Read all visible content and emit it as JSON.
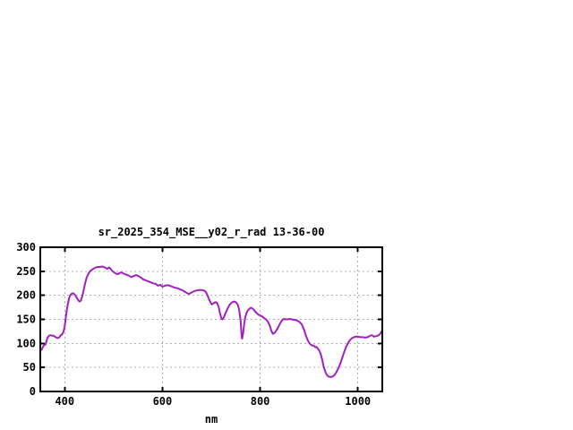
{
  "window": {
    "background": "#ffffff"
  },
  "chart_data": {
    "type": "line",
    "title": "sr_2025_354_MSE__y02_r_rad 13-36-00",
    "xlabel": "nm",
    "ylabel": "",
    "xlim": [
      350,
      1050
    ],
    "ylim": [
      0,
      300
    ],
    "xticks": [
      400,
      600,
      800,
      1000
    ],
    "yticks": [
      0,
      50,
      100,
      150,
      200,
      250,
      300
    ],
    "grid": true,
    "grid_style": "dashed",
    "legend_position": "none",
    "line_color": "#a020c0",
    "grid_color": "#b0b0b0",
    "axis_color": "#000000",
    "series": [
      {
        "name": "sr_2025_354_MSE__y02_r_rad",
        "points": [
          [
            350,
            86
          ],
          [
            353,
            87
          ],
          [
            356,
            94
          ],
          [
            359,
            97
          ],
          [
            361,
            98
          ],
          [
            363,
            106
          ],
          [
            365,
            112
          ],
          [
            368,
            116
          ],
          [
            371,
            117
          ],
          [
            374,
            116
          ],
          [
            377,
            116
          ],
          [
            380,
            114
          ],
          [
            383,
            112
          ],
          [
            386,
            111
          ],
          [
            389,
            113
          ],
          [
            392,
            117
          ],
          [
            394,
            118
          ],
          [
            396,
            121
          ],
          [
            398,
            126
          ],
          [
            400,
            136
          ],
          [
            402,
            152
          ],
          [
            404,
            168
          ],
          [
            406,
            180
          ],
          [
            408,
            190
          ],
          [
            410,
            197
          ],
          [
            412,
            201
          ],
          [
            415,
            204
          ],
          [
            418,
            204
          ],
          [
            421,
            201
          ],
          [
            424,
            196
          ],
          [
            427,
            191
          ],
          [
            430,
            187
          ],
          [
            433,
            189
          ],
          [
            436,
            198
          ],
          [
            439,
            212
          ],
          [
            442,
            226
          ],
          [
            445,
            237
          ],
          [
            448,
            244
          ],
          [
            451,
            249
          ],
          [
            454,
            252
          ],
          [
            457,
            254
          ],
          [
            460,
            256
          ],
          [
            464,
            258
          ],
          [
            468,
            259
          ],
          [
            472,
            259
          ],
          [
            476,
            260
          ],
          [
            480,
            259
          ],
          [
            484,
            257
          ],
          [
            487,
            255
          ],
          [
            491,
            258
          ],
          [
            494,
            255
          ],
          [
            497,
            251
          ],
          [
            501,
            248
          ],
          [
            505,
            245
          ],
          [
            509,
            244
          ],
          [
            513,
            247
          ],
          [
            517,
            247
          ],
          [
            521,
            245
          ],
          [
            526,
            243
          ],
          [
            531,
            241
          ],
          [
            536,
            238
          ],
          [
            541,
            240
          ],
          [
            546,
            242
          ],
          [
            551,
            240
          ],
          [
            556,
            237
          ],
          [
            561,
            233
          ],
          [
            566,
            231
          ],
          [
            571,
            229
          ],
          [
            576,
            227
          ],
          [
            581,
            225
          ],
          [
            586,
            224
          ],
          [
            591,
            220
          ],
          [
            596,
            222
          ],
          [
            600,
            218
          ],
          [
            605,
            220
          ],
          [
            610,
            221
          ],
          [
            615,
            220
          ],
          [
            620,
            218
          ],
          [
            625,
            216
          ],
          [
            630,
            215
          ],
          [
            635,
            213
          ],
          [
            640,
            211
          ],
          [
            645,
            208
          ],
          [
            650,
            205
          ],
          [
            654,
            203
          ],
          [
            658,
            205
          ],
          [
            662,
            207
          ],
          [
            666,
            209
          ],
          [
            670,
            210
          ],
          [
            675,
            211
          ],
          [
            680,
            211
          ],
          [
            685,
            210
          ],
          [
            689,
            207
          ],
          [
            693,
            198
          ],
          [
            697,
            188
          ],
          [
            701,
            181
          ],
          [
            705,
            184
          ],
          [
            709,
            186
          ],
          [
            712,
            184
          ],
          [
            715,
            176
          ],
          [
            718,
            162
          ],
          [
            721,
            151
          ],
          [
            723,
            150
          ],
          [
            726,
            155
          ],
          [
            730,
            165
          ],
          [
            734,
            174
          ],
          [
            738,
            181
          ],
          [
            742,
            185
          ],
          [
            746,
            187
          ],
          [
            750,
            186
          ],
          [
            754,
            181
          ],
          [
            757,
            170
          ],
          [
            760,
            148
          ],
          [
            762,
            118
          ],
          [
            763,
            110
          ],
          [
            765,
            120
          ],
          [
            767,
            138
          ],
          [
            769,
            152
          ],
          [
            772,
            163
          ],
          [
            775,
            169
          ],
          [
            778,
            172
          ],
          [
            781,
            174
          ],
          [
            784,
            173
          ],
          [
            787,
            170
          ],
          [
            790,
            166
          ],
          [
            793,
            163
          ],
          [
            796,
            160
          ],
          [
            800,
            158
          ],
          [
            804,
            156
          ],
          [
            808,
            153
          ],
          [
            812,
            150
          ],
          [
            816,
            145
          ],
          [
            820,
            136
          ],
          [
            823,
            126
          ],
          [
            826,
            120
          ],
          [
            830,
            122
          ],
          [
            835,
            130
          ],
          [
            840,
            140
          ],
          [
            844,
            147
          ],
          [
            848,
            151
          ],
          [
            852,
            150
          ],
          [
            856,
            150
          ],
          [
            860,
            151
          ],
          [
            865,
            150
          ],
          [
            870,
            149
          ],
          [
            875,
            148
          ],
          [
            880,
            145
          ],
          [
            885,
            140
          ],
          [
            890,
            128
          ],
          [
            894,
            115
          ],
          [
            898,
            105
          ],
          [
            902,
            99
          ],
          [
            906,
            96
          ],
          [
            910,
            95
          ],
          [
            913,
            92
          ],
          [
            915,
            93
          ],
          [
            918,
            89
          ],
          [
            921,
            85
          ],
          [
            924,
            78
          ],
          [
            927,
            66
          ],
          [
            930,
            52
          ],
          [
            933,
            42
          ],
          [
            936,
            35
          ],
          [
            940,
            31
          ],
          [
            944,
            30
          ],
          [
            948,
            31
          ],
          [
            952,
            34
          ],
          [
            956,
            40
          ],
          [
            960,
            48
          ],
          [
            964,
            58
          ],
          [
            968,
            70
          ],
          [
            972,
            82
          ],
          [
            976,
            93
          ],
          [
            980,
            101
          ],
          [
            984,
            107
          ],
          [
            988,
            111
          ],
          [
            992,
            113
          ],
          [
            996,
            114
          ],
          [
            1000,
            114
          ],
          [
            1005,
            113
          ],
          [
            1010,
            113
          ],
          [
            1015,
            112
          ],
          [
            1020,
            113
          ],
          [
            1025,
            116
          ],
          [
            1029,
            117
          ],
          [
            1033,
            114
          ],
          [
            1037,
            115
          ],
          [
            1041,
            116
          ],
          [
            1045,
            119
          ],
          [
            1048,
            124
          ],
          [
            1050,
            128
          ]
        ]
      }
    ]
  }
}
